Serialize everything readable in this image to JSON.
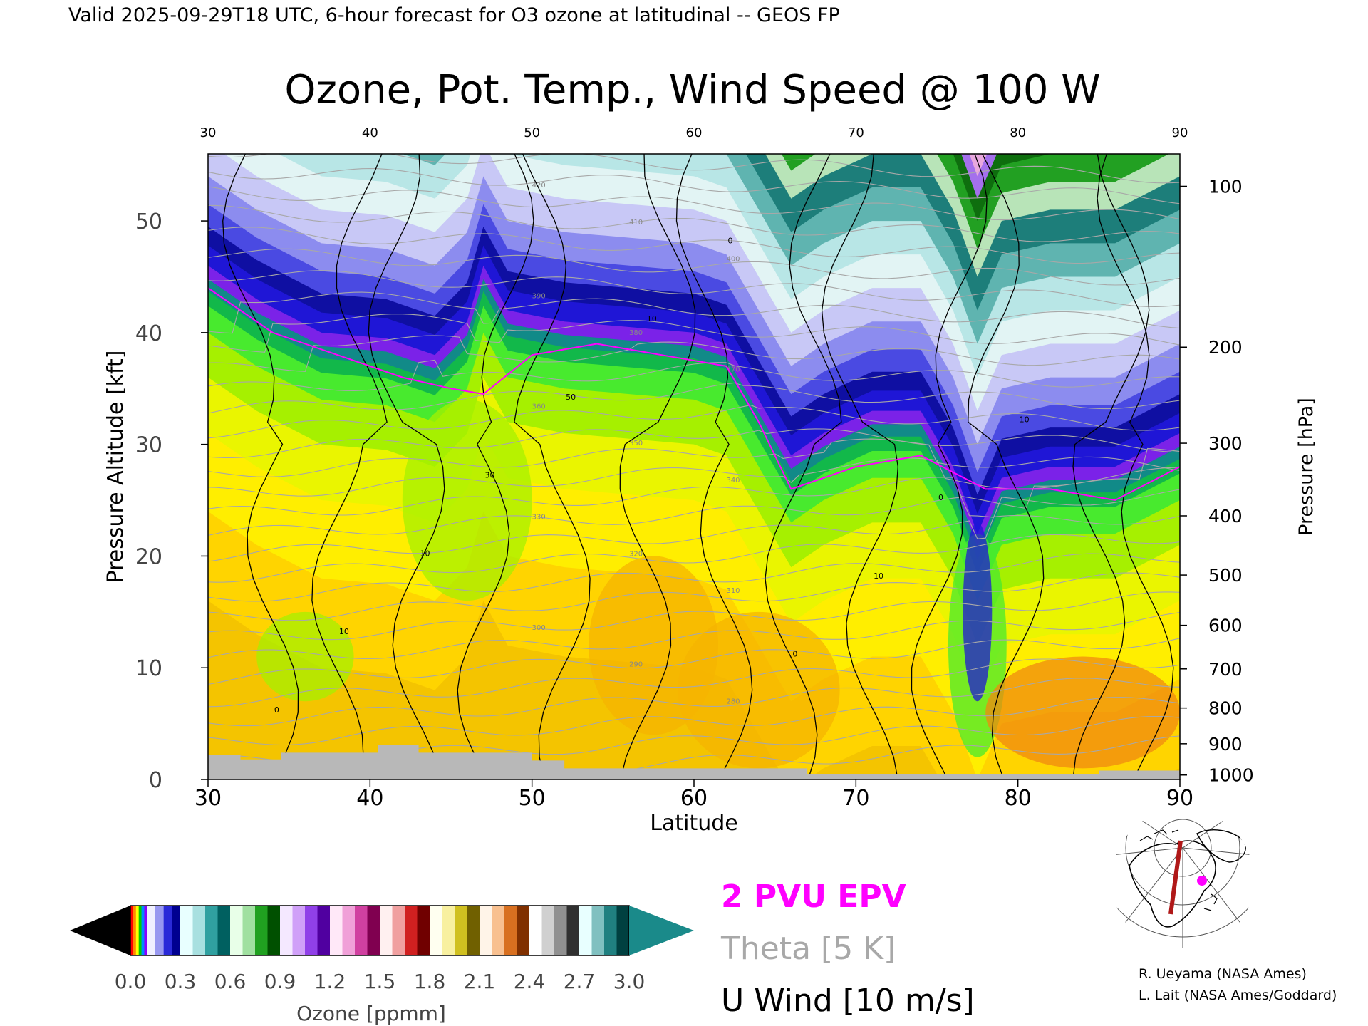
{
  "header": {
    "valid_line": "Valid 2025-09-29T18 UTC, 6-hour forecast for O3 ozone at latitudinal -- GEOS FP"
  },
  "chart_data": {
    "type": "heatmap",
    "title": "Ozone, Pot. Temp., Wind Speed @ 100 W",
    "xlabel": "Latitude",
    "ylabel": "Pressure Altitude [kft]",
    "y2label": "Pressure [hPa]",
    "xlim": [
      30,
      90
    ],
    "ylim": [
      0,
      56
    ],
    "x_ticks": [
      30,
      40,
      50,
      60,
      70,
      80,
      90
    ],
    "x_tick_labels": [
      "30",
      "40",
      "50",
      "60",
      "70",
      "80",
      "90"
    ],
    "x_top_tick_labels": [
      "30",
      "40",
      "50",
      "60",
      "70",
      "80",
      "90"
    ],
    "y_ticks": [
      0,
      10,
      20,
      30,
      40,
      50
    ],
    "y_tick_labels": [
      "0",
      "10",
      "20",
      "30",
      "40",
      "50"
    ],
    "pressure_ticks": [
      {
        "label": "100",
        "kft": 53.1
      },
      {
        "label": "200",
        "kft": 38.7
      },
      {
        "label": "300",
        "kft": 30.1
      },
      {
        "label": "400",
        "kft": 23.6
      },
      {
        "label": "500",
        "kft": 18.3
      },
      {
        "label": "600",
        "kft": 13.8
      },
      {
        "label": "700",
        "kft": 9.9
      },
      {
        "label": "800",
        "kft": 6.4
      },
      {
        "label": "900",
        "kft": 3.2
      },
      {
        "label": "1000",
        "kft": 0.4
      }
    ],
    "tropopause_kft": [
      {
        "lat": 30,
        "kft": 44
      },
      {
        "lat": 33,
        "kft": 41
      },
      {
        "lat": 37,
        "kft": 38
      },
      {
        "lat": 41,
        "kft": 37.5
      },
      {
        "lat": 44,
        "kft": 36
      },
      {
        "lat": 46,
        "kft": 39
      },
      {
        "lat": 47,
        "kft": 44
      },
      {
        "lat": 48.5,
        "kft": 40
      },
      {
        "lat": 52,
        "kft": 39
      },
      {
        "lat": 56,
        "kft": 38.5
      },
      {
        "lat": 60,
        "kft": 38
      },
      {
        "lat": 62,
        "kft": 37
      },
      {
        "lat": 64,
        "kft": 32
      },
      {
        "lat": 66,
        "kft": 27
      },
      {
        "lat": 68,
        "kft": 29
      },
      {
        "lat": 71,
        "kft": 31
      },
      {
        "lat": 74,
        "kft": 31
      },
      {
        "lat": 76,
        "kft": 26
      },
      {
        "lat": 77.5,
        "kft": 20
      },
      {
        "lat": 79,
        "kft": 25
      },
      {
        "lat": 82,
        "kft": 26
      },
      {
        "lat": 86,
        "kft": 26
      },
      {
        "lat": 90,
        "kft": 29
      }
    ],
    "epv_2pvu_kft": [
      {
        "lat": 30,
        "kft": 44
      },
      {
        "lat": 34,
        "kft": 40
      },
      {
        "lat": 38,
        "kft": 38
      },
      {
        "lat": 42,
        "kft": 36
      },
      {
        "lat": 45,
        "kft": 35
      },
      {
        "lat": 47,
        "kft": 34.5
      },
      {
        "lat": 50,
        "kft": 38
      },
      {
        "lat": 54,
        "kft": 39
      },
      {
        "lat": 58,
        "kft": 38
      },
      {
        "lat": 62,
        "kft": 37
      },
      {
        "lat": 64,
        "kft": 32
      },
      {
        "lat": 66,
        "kft": 26
      },
      {
        "lat": 70,
        "kft": 28
      },
      {
        "lat": 74,
        "kft": 29
      },
      {
        "lat": 78,
        "kft": 26
      },
      {
        "lat": 82,
        "kft": 26
      },
      {
        "lat": 86,
        "kft": 25
      },
      {
        "lat": 90,
        "kft": 28
      }
    ],
    "theta_labels": [
      "420",
      "410",
      "400",
      "390",
      "380",
      "370",
      "360",
      "350",
      "340",
      "330",
      "320",
      "310",
      "300",
      "290",
      "280"
    ],
    "u_wind_labels": [
      "0",
      "10",
      "10",
      "30",
      "50",
      "10",
      "0",
      "0",
      "10",
      "0",
      "10"
    ],
    "terrain_kft": [
      {
        "lat": 30,
        "kft": 2.2
      },
      {
        "lat": 32,
        "kft": 1.8
      },
      {
        "lat": 34.5,
        "kft": 2.4
      },
      {
        "lat": 40.5,
        "kft": 3.1
      },
      {
        "lat": 43,
        "kft": 2.4
      },
      {
        "lat": 50,
        "kft": 1.7
      },
      {
        "lat": 52,
        "kft": 1.0
      },
      {
        "lat": 67,
        "kft": 0.5
      },
      {
        "lat": 85,
        "kft": 0.8
      },
      {
        "lat": 90,
        "kft": 0.8
      }
    ],
    "colorbar": {
      "label": "Ozone [ppmm]",
      "vmin": 0.0,
      "vmax": 3.0,
      "tick_labels": [
        "0.0",
        "0.3",
        "0.6",
        "0.9",
        "1.2",
        "1.5",
        "1.8",
        "2.1",
        "2.4",
        "2.7",
        "3.0"
      ],
      "segments": [
        {
          "from": 0.0,
          "to": 0.1,
          "colors": [
            "#ff0000",
            "#ff8800",
            "#ffff00",
            "#00cc00",
            "#0088ff",
            "#8800ff"
          ]
        },
        {
          "from": 0.1,
          "to": 0.3,
          "colors": [
            "#f0f0ff",
            "#9898f0",
            "#2a2ad8",
            "#000090"
          ]
        },
        {
          "from": 0.3,
          "to": 0.6,
          "colors": [
            "#e8ffff",
            "#a8e0e0",
            "#30a0a0",
            "#006060"
          ]
        },
        {
          "from": 0.6,
          "to": 0.9,
          "colors": [
            "#e8ffe8",
            "#a0e0a0",
            "#20a020",
            "#005000"
          ]
        },
        {
          "from": 0.9,
          "to": 1.2,
          "colors": [
            "#f4e8ff",
            "#d0a0f8",
            "#9040e8",
            "#5000a0"
          ]
        },
        {
          "from": 1.2,
          "to": 1.5,
          "colors": [
            "#ffe8f8",
            "#f0a0d8",
            "#d040a0",
            "#800050"
          ]
        },
        {
          "from": 1.5,
          "to": 1.8,
          "colors": [
            "#fff0f0",
            "#f0a0a0",
            "#d02020",
            "#700000"
          ]
        },
        {
          "from": 1.8,
          "to": 2.1,
          "colors": [
            "#fffff0",
            "#f8f0a0",
            "#d0c020",
            "#706000"
          ]
        },
        {
          "from": 2.1,
          "to": 2.4,
          "colors": [
            "#fff4e8",
            "#f8c090",
            "#d87020",
            "#803000"
          ]
        },
        {
          "from": 2.4,
          "to": 2.7,
          "colors": [
            "#ffffff",
            "#d0d0d0",
            "#909090",
            "#303030"
          ]
        },
        {
          "from": 2.7,
          "to": 3.0,
          "colors": [
            "#e8ffff",
            "#80c0c0",
            "#208080",
            "#004040"
          ]
        }
      ],
      "under_color": "#000000",
      "over_color": "#1a8a8a"
    },
    "legend": {
      "epv": "2 PVU EPV",
      "theta": "Theta [5 K]",
      "uwind": "U Wind [10 m/s]"
    },
    "colors": {
      "epv": "#ff00ff",
      "theta": "#a8a8a8",
      "uwind": "#000000",
      "terrain": "#b8b8b8",
      "section_line": "#b01818"
    }
  },
  "inset_map": {
    "section_longitude": "100 W",
    "marker": "magenta-dot"
  },
  "credits": {
    "line1": "R. Ueyama (NASA Ames)",
    "line2": "L. Lait (NASA Ames/Goddard)"
  }
}
